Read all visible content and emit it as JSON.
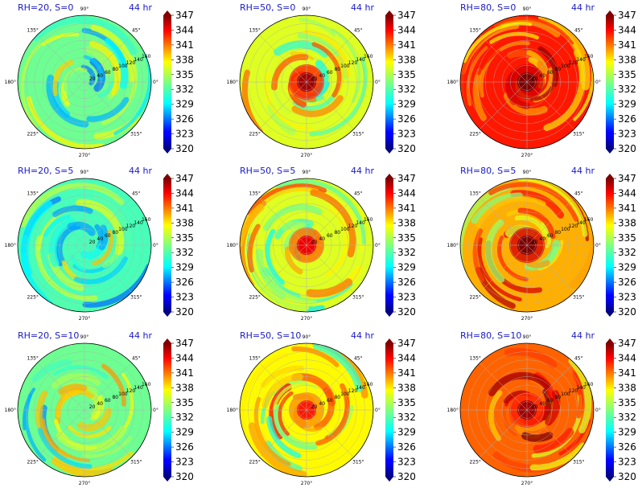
{
  "figure": {
    "time_label": "44 hr",
    "colorbar_ticks": [
      "347",
      "344",
      "341",
      "338",
      "335",
      "332",
      "329",
      "326",
      "323",
      "320"
    ],
    "angle_labels": [
      "90°",
      "45°",
      "0°",
      "315°",
      "270°",
      "225°",
      "180°",
      "135°"
    ],
    "radial_labels": [
      "20",
      "40",
      "60",
      "80",
      "100",
      "120",
      "140",
      "160"
    ],
    "colors": {
      "title": "#1a1acc",
      "edge": "#000000",
      "grid": "#b0b0b0"
    }
  },
  "chart_data": [
    {
      "type": "heatmap",
      "title": "RH=20, S=0",
      "subtitle": "44 hr",
      "colorbar": {
        "min": 320,
        "max": 347
      },
      "dominant_value": 333,
      "eye_value": null
    },
    {
      "type": "heatmap",
      "title": "RH=50, S=0",
      "subtitle": "44 hr",
      "colorbar": {
        "min": 320,
        "max": 347
      },
      "dominant_value": 336,
      "eye_value": 346
    },
    {
      "type": "heatmap",
      "title": "RH=80, S=0",
      "subtitle": "44 hr",
      "colorbar": {
        "min": 320,
        "max": 347
      },
      "dominant_value": 343,
      "eye_value": 348
    },
    {
      "type": "heatmap",
      "title": "RH=20, S=5",
      "subtitle": "44 hr",
      "colorbar": {
        "min": 320,
        "max": 347
      },
      "dominant_value": 332,
      "eye_value": null
    },
    {
      "type": "heatmap",
      "title": "RH=50, S=5",
      "subtitle": "44 hr",
      "colorbar": {
        "min": 320,
        "max": 347
      },
      "dominant_value": 336,
      "eye_value": 344
    },
    {
      "type": "heatmap",
      "title": "RH=80, S=5",
      "subtitle": "44 hr",
      "colorbar": {
        "min": 320,
        "max": 347
      },
      "dominant_value": 339,
      "eye_value": 348
    },
    {
      "type": "heatmap",
      "title": "RH=20, S=10",
      "subtitle": "44 hr",
      "colorbar": {
        "min": 320,
        "max": 347
      },
      "dominant_value": 333,
      "eye_value": null
    },
    {
      "type": "heatmap",
      "title": "RH=50, S=10",
      "subtitle": "44 hr",
      "colorbar": {
        "min": 320,
        "max": 347
      },
      "dominant_value": 337,
      "eye_value": 343
    },
    {
      "type": "heatmap",
      "title": "RH=80, S=10",
      "subtitle": "44 hr",
      "colorbar": {
        "min": 320,
        "max": 347
      },
      "dominant_value": 341,
      "eye_value": 346
    }
  ]
}
